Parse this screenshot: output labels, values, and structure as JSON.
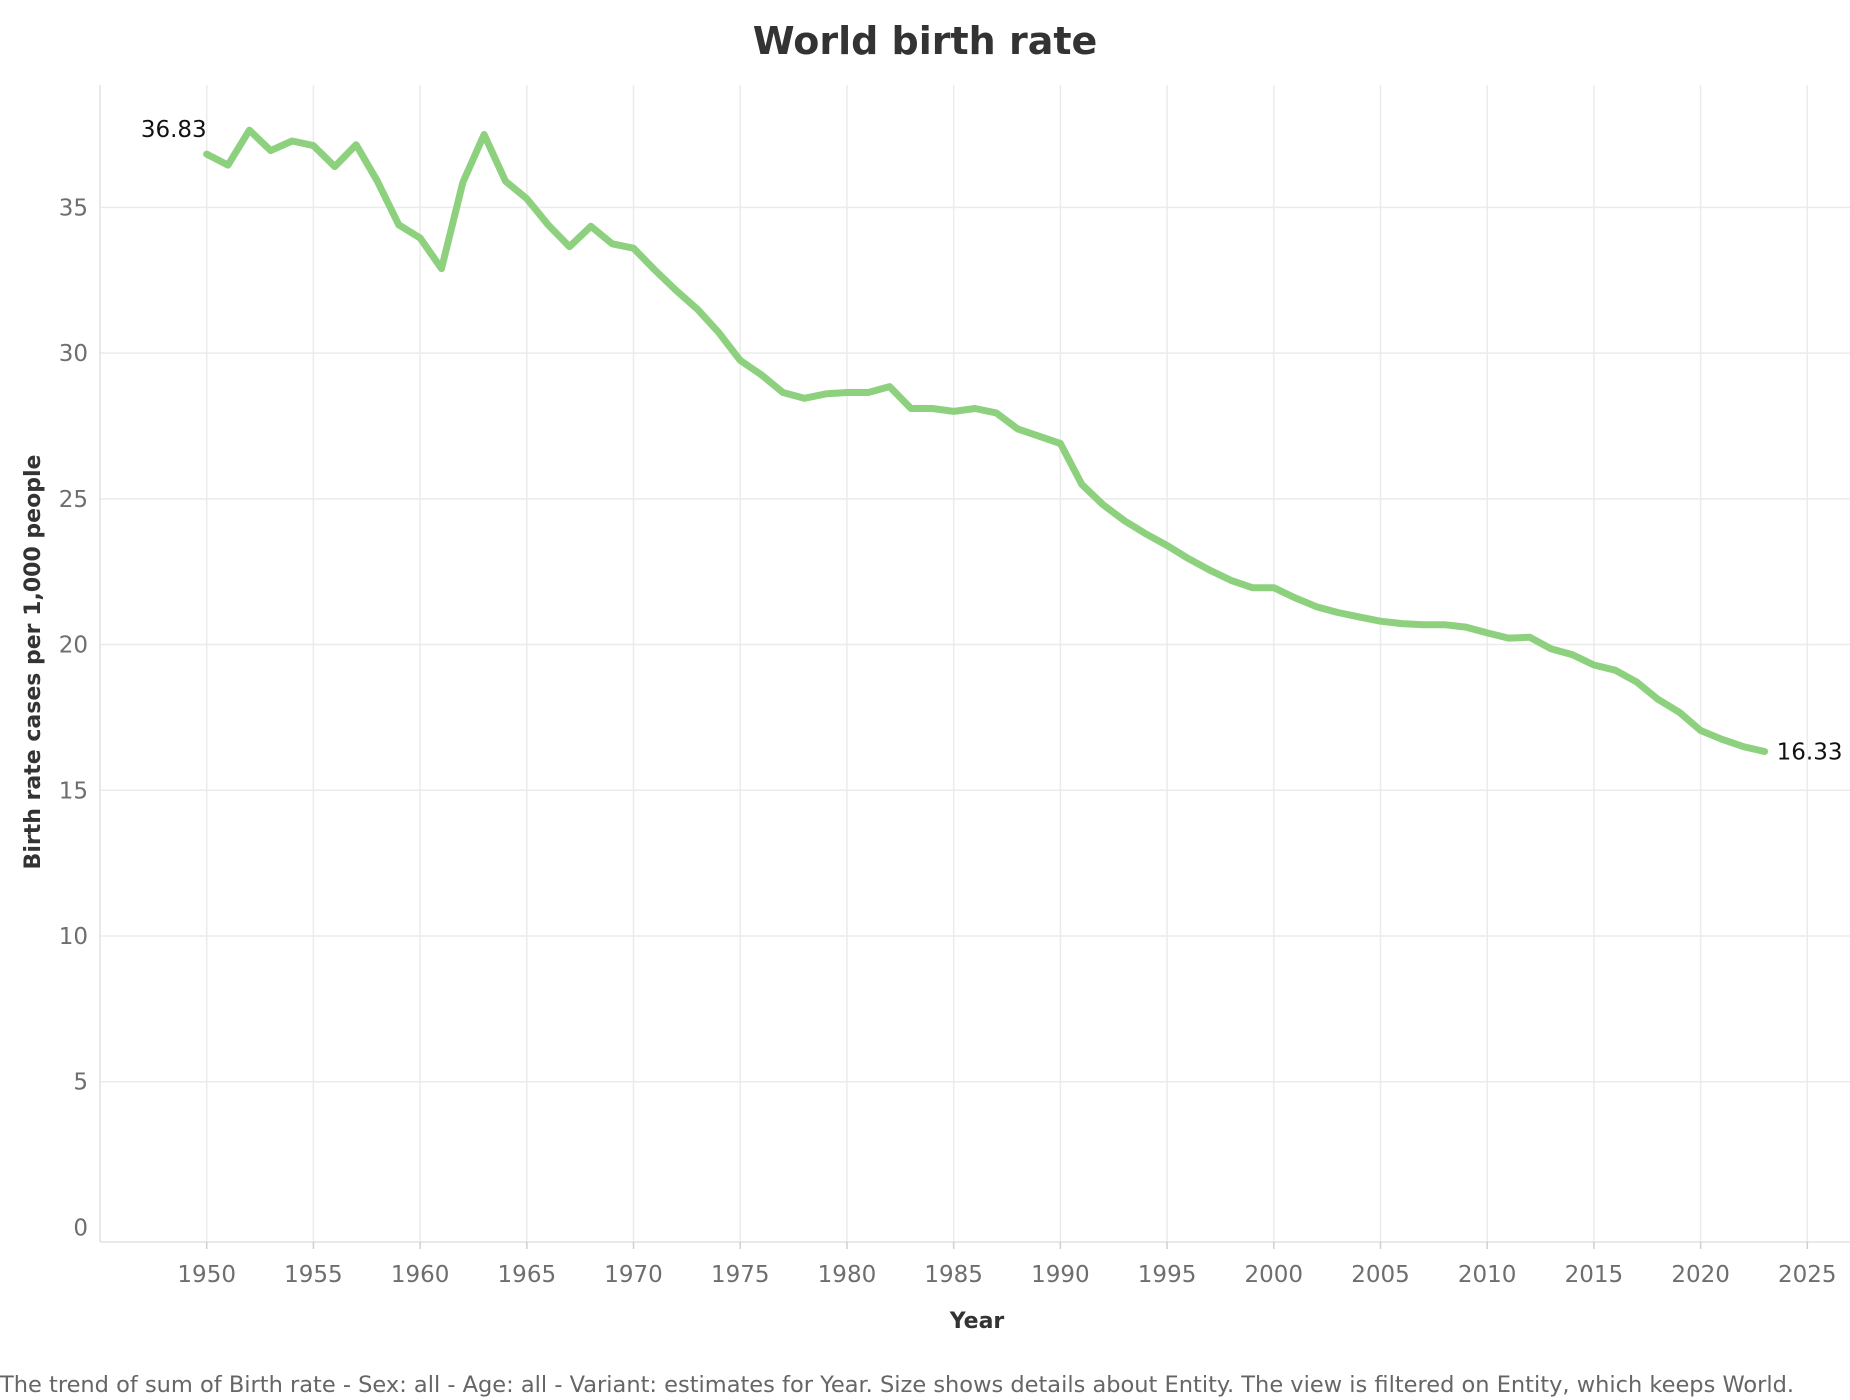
{
  "chart_data": {
    "type": "line",
    "title": "World birth rate",
    "xlabel": "Year",
    "ylabel": "Birth rate cases per 1,000 people",
    "footnote": "The trend of sum of Birth rate - Sex: all - Age: all - Variant: estimates for Year.  Size shows details about Entity. The view is filtered on Entity, which keeps World.",
    "xlim": [
      1945,
      2027
    ],
    "ylim": [
      -0.5,
      39.2
    ],
    "x_ticks": [
      1950,
      1955,
      1960,
      1965,
      1970,
      1975,
      1980,
      1985,
      1990,
      1995,
      2000,
      2005,
      2010,
      2015,
      2020,
      2025
    ],
    "y_ticks": [
      0,
      5,
      10,
      15,
      20,
      25,
      30,
      35
    ],
    "grid": true,
    "line_color": "#8dd17e",
    "series": [
      {
        "x": [
          1950,
          1951,
          1952,
          1953,
          1954,
          1955,
          1956,
          1957,
          1958,
          1959,
          1960,
          1961,
          1962,
          1963,
          1964,
          1965,
          1966,
          1967,
          1968,
          1969,
          1970,
          1971,
          1972,
          1973,
          1974,
          1975,
          1976,
          1977,
          1978,
          1979,
          1980,
          1981,
          1982,
          1983,
          1984,
          1985,
          1986,
          1987,
          1988,
          1989,
          1990,
          1991,
          1992,
          1993,
          1994,
          1995,
          1996,
          1997,
          1998,
          1999,
          2000,
          2001,
          2002,
          2003,
          2004,
          2005,
          2006,
          2007,
          2008,
          2009,
          2010,
          2011,
          2012,
          2013,
          2014,
          2015,
          2016,
          2017,
          2018,
          2019,
          2020,
          2021,
          2022,
          2023
        ],
        "values": [
          36.83,
          36.45,
          37.65,
          36.95,
          37.28,
          37.12,
          36.4,
          37.15,
          35.9,
          34.4,
          33.95,
          32.9,
          35.85,
          37.5,
          35.9,
          35.3,
          34.4,
          33.65,
          34.35,
          33.75,
          33.6,
          32.85,
          32.15,
          31.5,
          30.7,
          29.75,
          29.25,
          28.65,
          28.45,
          28.6,
          28.65,
          28.65,
          28.85,
          28.1,
          28.1,
          28.0,
          28.1,
          27.95,
          27.4,
          27.15,
          26.9,
          25.5,
          24.8,
          24.25,
          23.8,
          23.4,
          22.95,
          22.55,
          22.2,
          21.95,
          21.95,
          21.6,
          21.3,
          21.1,
          20.95,
          20.8,
          20.72,
          20.68,
          20.68,
          20.6,
          20.4,
          20.22,
          20.25,
          19.85,
          19.65,
          19.3,
          19.12,
          18.72,
          18.12,
          17.68,
          17.05,
          16.75,
          16.5,
          16.33
        ],
        "labels": [
          {
            "year": 1950,
            "text": "36.83"
          },
          {
            "year": 2023,
            "text": "16.33"
          }
        ]
      }
    ]
  }
}
